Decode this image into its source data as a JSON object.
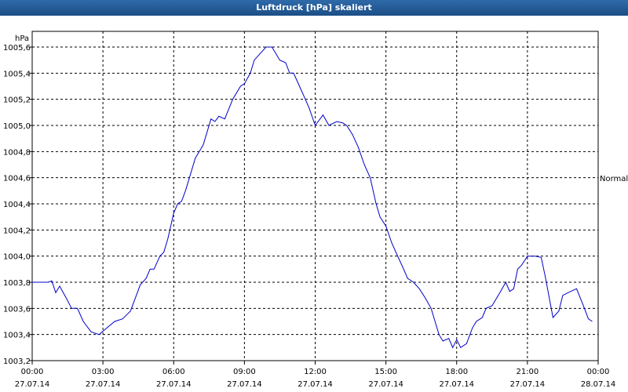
{
  "window": {
    "title": "Luftdruck [hPa] skaliert"
  },
  "chart_data": {
    "type": "line",
    "title": "Luftdruck [hPa] skaliert",
    "ylabel": "hPa",
    "right_label": "Normal",
    "ylim": [
      1003.2,
      1005.6
    ],
    "xlim_hours": [
      0,
      24
    ],
    "grid": true,
    "yticks": [
      "1003,2",
      "1003,4",
      "1003,6",
      "1003,8",
      "1004,0",
      "1004,2",
      "1004,4",
      "1004,6",
      "1004,8",
      "1005,0",
      "1005,2",
      "1005,4",
      "1005,6"
    ],
    "xticks": [
      {
        "time": "00:00",
        "date": "27.07.14"
      },
      {
        "time": "03:00",
        "date": "27.07.14"
      },
      {
        "time": "06:00",
        "date": "27.07.14"
      },
      {
        "time": "09:00",
        "date": "27.07.14"
      },
      {
        "time": "12:00",
        "date": "27.07.14"
      },
      {
        "time": "15:00",
        "date": "27.07.14"
      },
      {
        "time": "18:00",
        "date": "27.07.14"
      },
      {
        "time": "21:00",
        "date": "27.07.14"
      },
      {
        "time": "00:00",
        "date": "28.07.14"
      }
    ],
    "series": [
      {
        "color": "#0000c8",
        "points": [
          [
            "27.07.14 00:00",
            1003.8
          ],
          [
            "27.07.14 00:40",
            1003.8
          ],
          [
            "27.07.14 00:50",
            1003.81
          ],
          [
            "27.07.14 01:00",
            1003.72
          ],
          [
            "27.07.14 01:10",
            1003.77
          ],
          [
            "27.07.14 01:30",
            1003.66
          ],
          [
            "27.07.14 01:40",
            1003.6
          ],
          [
            "27.07.14 01:55",
            1003.6
          ],
          [
            "27.07.14 02:10",
            1003.5
          ],
          [
            "27.07.14 02:30",
            1003.42
          ],
          [
            "27.07.14 02:50",
            1003.4
          ],
          [
            "27.07.14 03:10",
            1003.45
          ],
          [
            "27.07.14 03:30",
            1003.5
          ],
          [
            "27.07.14 03:50",
            1003.52
          ],
          [
            "27.07.14 04:00",
            1003.55
          ],
          [
            "27.07.14 04:10",
            1003.58
          ],
          [
            "27.07.14 04:25",
            1003.7
          ],
          [
            "27.07.14 04:35",
            1003.78
          ],
          [
            "27.07.14 04:50",
            1003.83
          ],
          [
            "27.07.14 05:00",
            1003.9
          ],
          [
            "27.07.14 05:10",
            1003.9
          ],
          [
            "27.07.14 05:25",
            1004.0
          ],
          [
            "27.07.14 05:35",
            1004.03
          ],
          [
            "27.07.14 05:45",
            1004.13
          ],
          [
            "27.07.14 06:00",
            1004.33
          ],
          [
            "27.07.14 06:10",
            1004.4
          ],
          [
            "27.07.14 06:20",
            1004.42
          ],
          [
            "27.07.14 06:30",
            1004.5
          ],
          [
            "27.07.14 06:40",
            1004.6
          ],
          [
            "27.07.14 06:55",
            1004.75
          ],
          [
            "27.07.14 07:05",
            1004.8
          ],
          [
            "27.07.14 07:15",
            1004.85
          ],
          [
            "27.07.14 07:35",
            1005.05
          ],
          [
            "27.07.14 07:45",
            1005.03
          ],
          [
            "27.07.14 07:55",
            1005.07
          ],
          [
            "27.07.14 08:10",
            1005.05
          ],
          [
            "27.07.14 08:30",
            1005.2
          ],
          [
            "27.07.14 08:50",
            1005.3
          ],
          [
            "27.07.14 09:00",
            1005.32
          ],
          [
            "27.07.14 09:15",
            1005.4
          ],
          [
            "27.07.14 09:25",
            1005.5
          ],
          [
            "27.07.14 09:40",
            1005.55
          ],
          [
            "27.07.14 09:55",
            1005.6
          ],
          [
            "27.07.14 10:10",
            1005.6
          ],
          [
            "27.07.14 10:20",
            1005.55
          ],
          [
            "27.07.14 10:30",
            1005.5
          ],
          [
            "27.07.14 10:45",
            1005.48
          ],
          [
            "27.07.14 10:55",
            1005.4
          ],
          [
            "27.07.14 11:05",
            1005.4
          ],
          [
            "27.07.14 11:20",
            1005.3
          ],
          [
            "27.07.14 11:35",
            1005.2
          ],
          [
            "27.07.14 11:45",
            1005.13
          ],
          [
            "27.07.14 12:00",
            1005.0
          ],
          [
            "27.07.14 12:20",
            1005.08
          ],
          [
            "27.07.14 12:35",
            1005.0
          ],
          [
            "27.07.14 12:55",
            1005.03
          ],
          [
            "27.07.14 13:10",
            1005.02
          ],
          [
            "27.07.14 13:20",
            1005.0
          ],
          [
            "27.07.14 13:35",
            1004.93
          ],
          [
            "27.07.14 13:50",
            1004.83
          ],
          [
            "27.07.14 14:05",
            1004.7
          ],
          [
            "27.07.14 14:20",
            1004.6
          ],
          [
            "27.07.14 14:35",
            1004.4
          ],
          [
            "27.07.14 14:45",
            1004.3
          ],
          [
            "27.07.14 15:00",
            1004.23
          ],
          [
            "27.07.14 15:15",
            1004.1
          ],
          [
            "27.07.14 15:30",
            1004.0
          ],
          [
            "27.07.14 15:45",
            1003.9
          ],
          [
            "27.07.14 15:55",
            1003.83
          ],
          [
            "27.07.14 16:10",
            1003.8
          ],
          [
            "27.07.14 16:25",
            1003.75
          ],
          [
            "27.07.14 16:40",
            1003.68
          ],
          [
            "27.07.14 16:55",
            1003.6
          ],
          [
            "27.07.14 17:05",
            1003.5
          ],
          [
            "27.07.14 17:15",
            1003.4
          ],
          [
            "27.07.14 17:25",
            1003.35
          ],
          [
            "27.07.14 17:40",
            1003.37
          ],
          [
            "27.07.14 17:50",
            1003.3
          ],
          [
            "27.07.14 18:00",
            1003.36
          ],
          [
            "27.07.14 18:10",
            1003.3
          ],
          [
            "27.07.14 18:25",
            1003.33
          ],
          [
            "27.07.14 18:40",
            1003.45
          ],
          [
            "27.07.14 18:50",
            1003.5
          ],
          [
            "27.07.14 19:05",
            1003.53
          ],
          [
            "27.07.14 19:15",
            1003.6
          ],
          [
            "27.07.14 19:30",
            1003.62
          ],
          [
            "27.07.14 19:50",
            1003.72
          ],
          [
            "27.07.14 20:05",
            1003.8
          ],
          [
            "27.07.14 20:15",
            1003.73
          ],
          [
            "27.07.14 20:25",
            1003.75
          ],
          [
            "27.07.14 20:35",
            1003.9
          ],
          [
            "27.07.14 20:45",
            1003.93
          ],
          [
            "27.07.14 21:00",
            1004.0
          ],
          [
            "27.07.14 21:20",
            1004.0
          ],
          [
            "27.07.14 21:35",
            1003.99
          ],
          [
            "27.07.14 21:45",
            1003.85
          ],
          [
            "27.07.14 22:05",
            1003.53
          ],
          [
            "27.07.14 22:20",
            1003.58
          ],
          [
            "27.07.14 22:30",
            1003.7
          ],
          [
            "27.07.14 22:50",
            1003.73
          ],
          [
            "27.07.14 23:05",
            1003.75
          ],
          [
            "27.07.14 23:25",
            1003.6
          ],
          [
            "27.07.14 23:35",
            1003.52
          ],
          [
            "27.07.14 23:45",
            1003.5
          ]
        ]
      }
    ]
  }
}
